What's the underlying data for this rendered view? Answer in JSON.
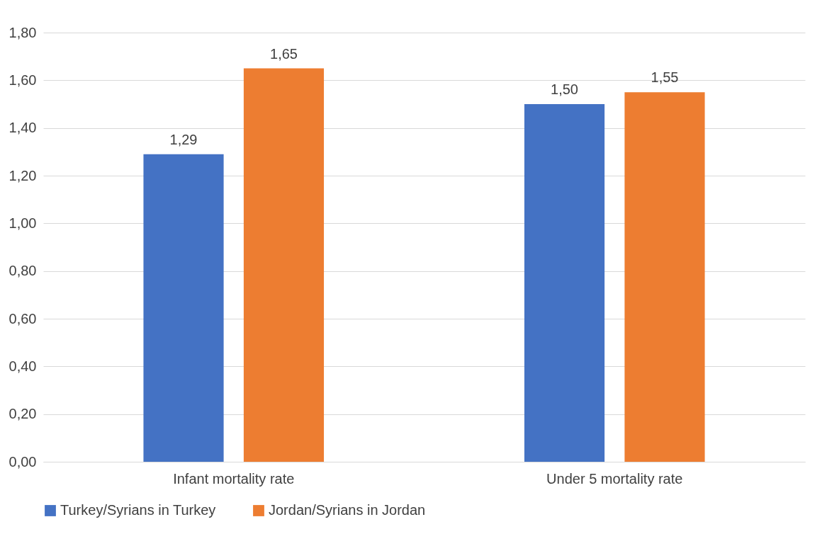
{
  "chart_data": {
    "type": "bar",
    "categories": [
      "Infant mortality rate",
      "Under 5 mortality rate"
    ],
    "series": [
      {
        "name": "Turkey/Syrians in Turkey",
        "color": "#4472c4",
        "values": [
          1.29,
          1.5
        ],
        "value_labels": [
          "1,29",
          "1,50"
        ]
      },
      {
        "name": "Jordan/Syrians in Jordan",
        "color": "#ed7d31",
        "values": [
          1.65,
          1.55
        ],
        "value_labels": [
          "1,65",
          "1,55"
        ]
      }
    ],
    "ylim": [
      0,
      1.8
    ],
    "yticks": [
      {
        "value": 0,
        "label": "0,00"
      },
      {
        "value": 0.2,
        "label": "0,20"
      },
      {
        "value": 0.4,
        "label": "0,40"
      },
      {
        "value": 0.6,
        "label": "0,60"
      },
      {
        "value": 0.8,
        "label": "0,80"
      },
      {
        "value": 1.0,
        "label": "1,00"
      },
      {
        "value": 1.2,
        "label": "1,20"
      },
      {
        "value": 1.4,
        "label": "1,40"
      },
      {
        "value": 1.6,
        "label": "1,60"
      },
      {
        "value": 1.8,
        "label": "1,80"
      }
    ],
    "grid": "y",
    "legend": "bottom"
  }
}
